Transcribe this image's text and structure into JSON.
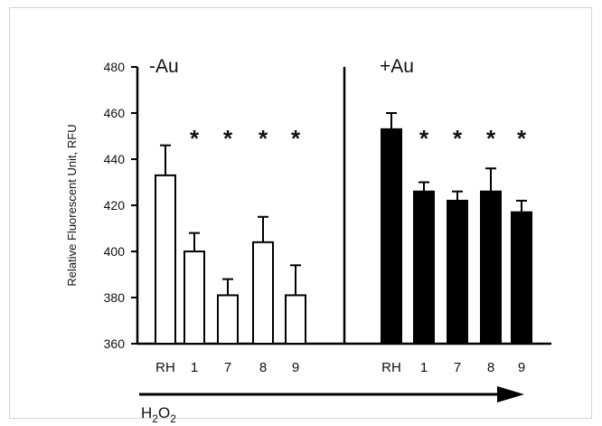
{
  "chart_data": {
    "type": "bar",
    "ylabel": "Relative Fluorescent Unit, RFU",
    "ylim": [
      360,
      480
    ],
    "yticks": [
      360,
      380,
      400,
      420,
      440,
      460,
      480
    ],
    "error_bars": true,
    "x_arrow_label": {
      "base": "H",
      "sub1": "2",
      "mid": "O",
      "sub2": "2"
    },
    "groups": [
      {
        "label": "-Au",
        "fill": "#ffffff",
        "categories": [
          "RH",
          "1",
          "7",
          "8",
          "9"
        ],
        "values": [
          433,
          400,
          381,
          404,
          381
        ],
        "errors": [
          13,
          8,
          7,
          11,
          13
        ],
        "significance": [
          "",
          "*",
          "*",
          "*",
          "*"
        ]
      },
      {
        "label": "+Au",
        "fill": "#000000",
        "categories": [
          "RH",
          "1",
          "7",
          "8",
          "9"
        ],
        "values": [
          453,
          426,
          422,
          426,
          417
        ],
        "errors": [
          7,
          4,
          4,
          10,
          5
        ],
        "significance": [
          "",
          "*",
          "*",
          "*",
          "*"
        ]
      }
    ]
  }
}
